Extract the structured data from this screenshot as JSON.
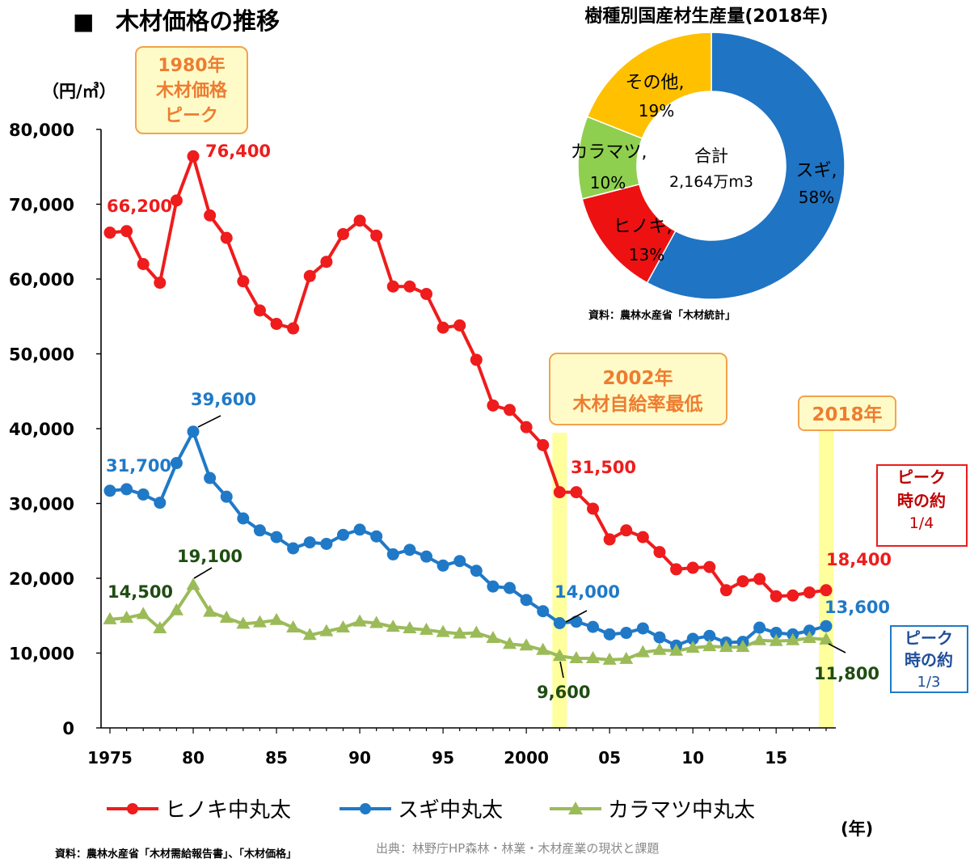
{
  "page": {
    "title_marker": "■",
    "title": "木材価格の推移",
    "unit": "（円/㎥）",
    "year_unit": "(年)",
    "source_left": "資料：農林水産省「木材需給報告書」、「木材価格」",
    "source_credit": "出典：林野庁HP森林・林業・木材産業の現状と課題"
  },
  "callouts": {
    "peak1980": [
      "1980年",
      "木材価格",
      "ピーク"
    ],
    "low2002": [
      "2002年",
      "木材自給率最低"
    ],
    "y2018": "2018年",
    "hinoki_ratio": [
      "ピーク",
      "時の約",
      "1/4"
    ],
    "sugi_ratio": [
      "ピーク",
      "時の約",
      "1/3"
    ]
  },
  "chart_data": [
    {
      "type": "line",
      "title": "木材価格の推移",
      "ylabel": "（円/㎥）",
      "xlabel": "(年)",
      "ylim": [
        0,
        80000
      ],
      "xlim": [
        1975,
        2018
      ],
      "yticks": [
        0,
        10000,
        20000,
        30000,
        40000,
        50000,
        60000,
        70000,
        80000
      ],
      "ytick_labels": [
        "0",
        "10,000",
        "20,000",
        "30,000",
        "40,000",
        "50,000",
        "60,000",
        "70,000",
        "80,000"
      ],
      "xticks": [
        1975,
        1980,
        1985,
        1990,
        1995,
        2000,
        2005,
        2010,
        2015
      ],
      "xtick_labels": [
        "1975",
        "80",
        "85",
        "90",
        "95",
        "2000",
        "05",
        "10",
        "15"
      ],
      "x": [
        1975,
        1976,
        1977,
        1978,
        1979,
        1980,
        1981,
        1982,
        1983,
        1984,
        1985,
        1986,
        1987,
        1988,
        1989,
        1990,
        1991,
        1992,
        1993,
        1994,
        1995,
        1996,
        1997,
        1998,
        1999,
        2000,
        2001,
        2002,
        2003,
        2004,
        2005,
        2006,
        2007,
        2008,
        2009,
        2010,
        2011,
        2012,
        2013,
        2014,
        2015,
        2016,
        2017,
        2018
      ],
      "series": [
        {
          "name": "ヒノキ中丸太",
          "color": "#ee1c1c",
          "marker": "circle",
          "values": [
            66200,
            66400,
            62000,
            59500,
            70500,
            76400,
            68500,
            65500,
            59700,
            55800,
            54000,
            53400,
            60400,
            62300,
            66000,
            67800,
            65800,
            59000,
            59000,
            58000,
            53500,
            53800,
            49200,
            43100,
            42500,
            40200,
            37800,
            31500,
            31500,
            29300,
            25200,
            26400,
            25500,
            23500,
            21200,
            21400,
            21500,
            18400,
            19600,
            19900,
            17600,
            17700,
            18100,
            18400
          ]
        },
        {
          "name": "スギ中丸太",
          "color": "#2079c7",
          "marker": "circle",
          "values": [
            31700,
            31900,
            31200,
            30100,
            35400,
            39600,
            33400,
            30900,
            28000,
            26400,
            25500,
            24000,
            24800,
            24600,
            25800,
            26500,
            25600,
            23200,
            23800,
            22900,
            21700,
            22300,
            21000,
            18900,
            18700,
            17100,
            15600,
            14000,
            14200,
            13500,
            12500,
            12700,
            13300,
            12100,
            11000,
            11900,
            12300,
            11400,
            11500,
            13400,
            12700,
            12500,
            13000,
            13600
          ]
        },
        {
          "name": "カラマツ中丸太",
          "color": "#9bbb59",
          "marker": "triangle",
          "values": [
            14500,
            14700,
            15200,
            13300,
            15700,
            19100,
            15500,
            14700,
            13900,
            14100,
            14400,
            13400,
            12400,
            12900,
            13400,
            14200,
            14000,
            13500,
            13300,
            13100,
            12800,
            12600,
            12700,
            12000,
            11200,
            11000,
            10400,
            9600,
            9300,
            9300,
            9100,
            9200,
            10100,
            10400,
            10300,
            10700,
            10900,
            10800,
            10800,
            11700,
            11600,
            11700,
            12000,
            11800
          ]
        }
      ],
      "data_labels": {
        "hinoki_1975": "66,200",
        "hinoki_1980": "76,400",
        "hinoki_2002": "31,500",
        "hinoki_2018": "18,400",
        "sugi_1975": "31,700",
        "sugi_1980": "39,600",
        "sugi_2002": "14,000",
        "sugi_2018": "13,600",
        "kara_1975": "14,500",
        "kara_1980": "19,100",
        "kara_2002": "9,600",
        "kara_2018": "11,800"
      }
    },
    {
      "type": "pie",
      "donut": true,
      "title": "樹種別国産材生産量(2018年)",
      "center_label": [
        "合計",
        "2,164万m3"
      ],
      "slices": [
        {
          "name": "スギ,",
          "percent_label": "58%",
          "value": 58,
          "color": "#1f74c4"
        },
        {
          "name": "ヒノキ,",
          "percent_label": "13%",
          "value": 13,
          "color": "#ee1111"
        },
        {
          "name": "カラマツ,",
          "percent_label": "10%",
          "value": 10,
          "color": "#8fcf4f"
        },
        {
          "name": "その他,",
          "percent_label": "19%",
          "value": 19,
          "color": "#ffc000"
        }
      ],
      "source": "資料：農林水産省「木材統計」"
    }
  ]
}
